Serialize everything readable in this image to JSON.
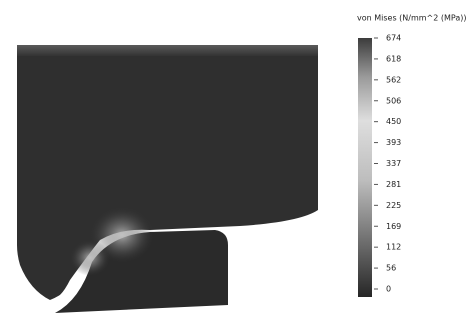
{
  "legend": {
    "title": "von Mises (N/mm^2 (MPa))",
    "ticks": [
      "674",
      "618",
      "562",
      "506",
      "450",
      "393",
      "337",
      "281",
      "225",
      "169",
      "112",
      "56",
      "0"
    ]
  }
}
